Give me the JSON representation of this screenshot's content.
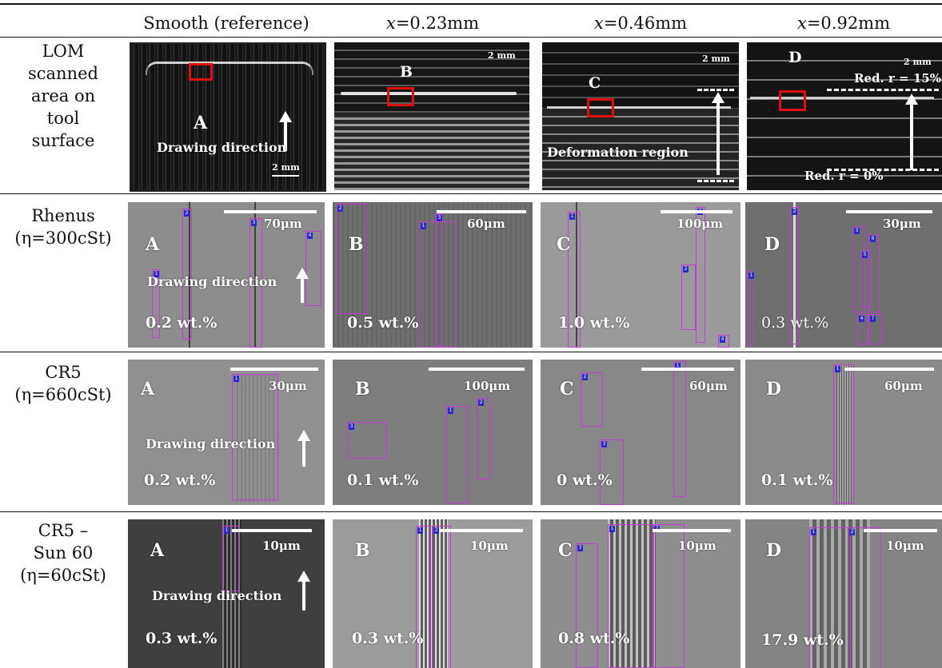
{
  "columns": [
    "Smooth (reference)",
    "x=0.23mm",
    "x=0.46mm",
    "x=0.92mm"
  ],
  "columns_rich": [
    {
      "pre": "",
      "var": "",
      "post": "Smooth (reference)"
    },
    {
      "pre": "",
      "var": "x",
      "post": "=0.23mm"
    },
    {
      "pre": "",
      "var": "x",
      "post": "=0.46mm"
    },
    {
      "pre": "",
      "var": "x",
      "post": "=0.92mm"
    }
  ],
  "rows": [
    {
      "label_lines": [
        "LOM",
        "scanned",
        "area on",
        "tool",
        "surface"
      ]
    },
    {
      "label_lines": [
        "Rhenus",
        "(η=300cSt)"
      ]
    },
    {
      "label_lines": [
        "CR5",
        "(η=660cSt)"
      ]
    },
    {
      "label_lines": [
        "CR5 –",
        "Sun 60",
        "(η=60cSt)"
      ]
    }
  ],
  "lom": {
    "letters": [
      "A",
      "B",
      "C",
      "D"
    ],
    "scale_label": "2 mm",
    "drawing_direction": "Drawing direction",
    "deformation_region": "Deformation region",
    "reduction_top": "Red. r = 15%",
    "reduction_bottom": "Red. r = 0%"
  },
  "sem": {
    "drawing_direction": "Drawing direction",
    "rhenus": [
      {
        "letter": "A",
        "scale": "70μm",
        "wt": "0.2 wt.%"
      },
      {
        "letter": "B",
        "scale": "60μm",
        "wt": "0.5 wt.%"
      },
      {
        "letter": "C",
        "scale": "100μm",
        "wt": "1.0 wt.%"
      },
      {
        "letter": "D",
        "scale": "30μm",
        "wt": "0.3 wt.%"
      }
    ],
    "cr5": [
      {
        "letter": "A",
        "scale": "30μm",
        "wt": "0.2 wt.%"
      },
      {
        "letter": "B",
        "scale": "100μm",
        "wt": "0.1 wt.%"
      },
      {
        "letter": "C",
        "scale": "60μm",
        "wt": "0 wt.%"
      },
      {
        "letter": "D",
        "scale": "60μm",
        "wt": "0.1 wt.%"
      }
    ],
    "cr5sun": [
      {
        "letter": "A",
        "scale": "10μm",
        "wt": "0.3 wt.%"
      },
      {
        "letter": "B",
        "scale": "10μm",
        "wt": "0.3 wt.%"
      },
      {
        "letter": "C",
        "scale": "10μm",
        "wt": "0.8 wt.%"
      },
      {
        "letter": "D",
        "scale": "10μm",
        "wt": "17.9 wt.%"
      }
    ]
  }
}
